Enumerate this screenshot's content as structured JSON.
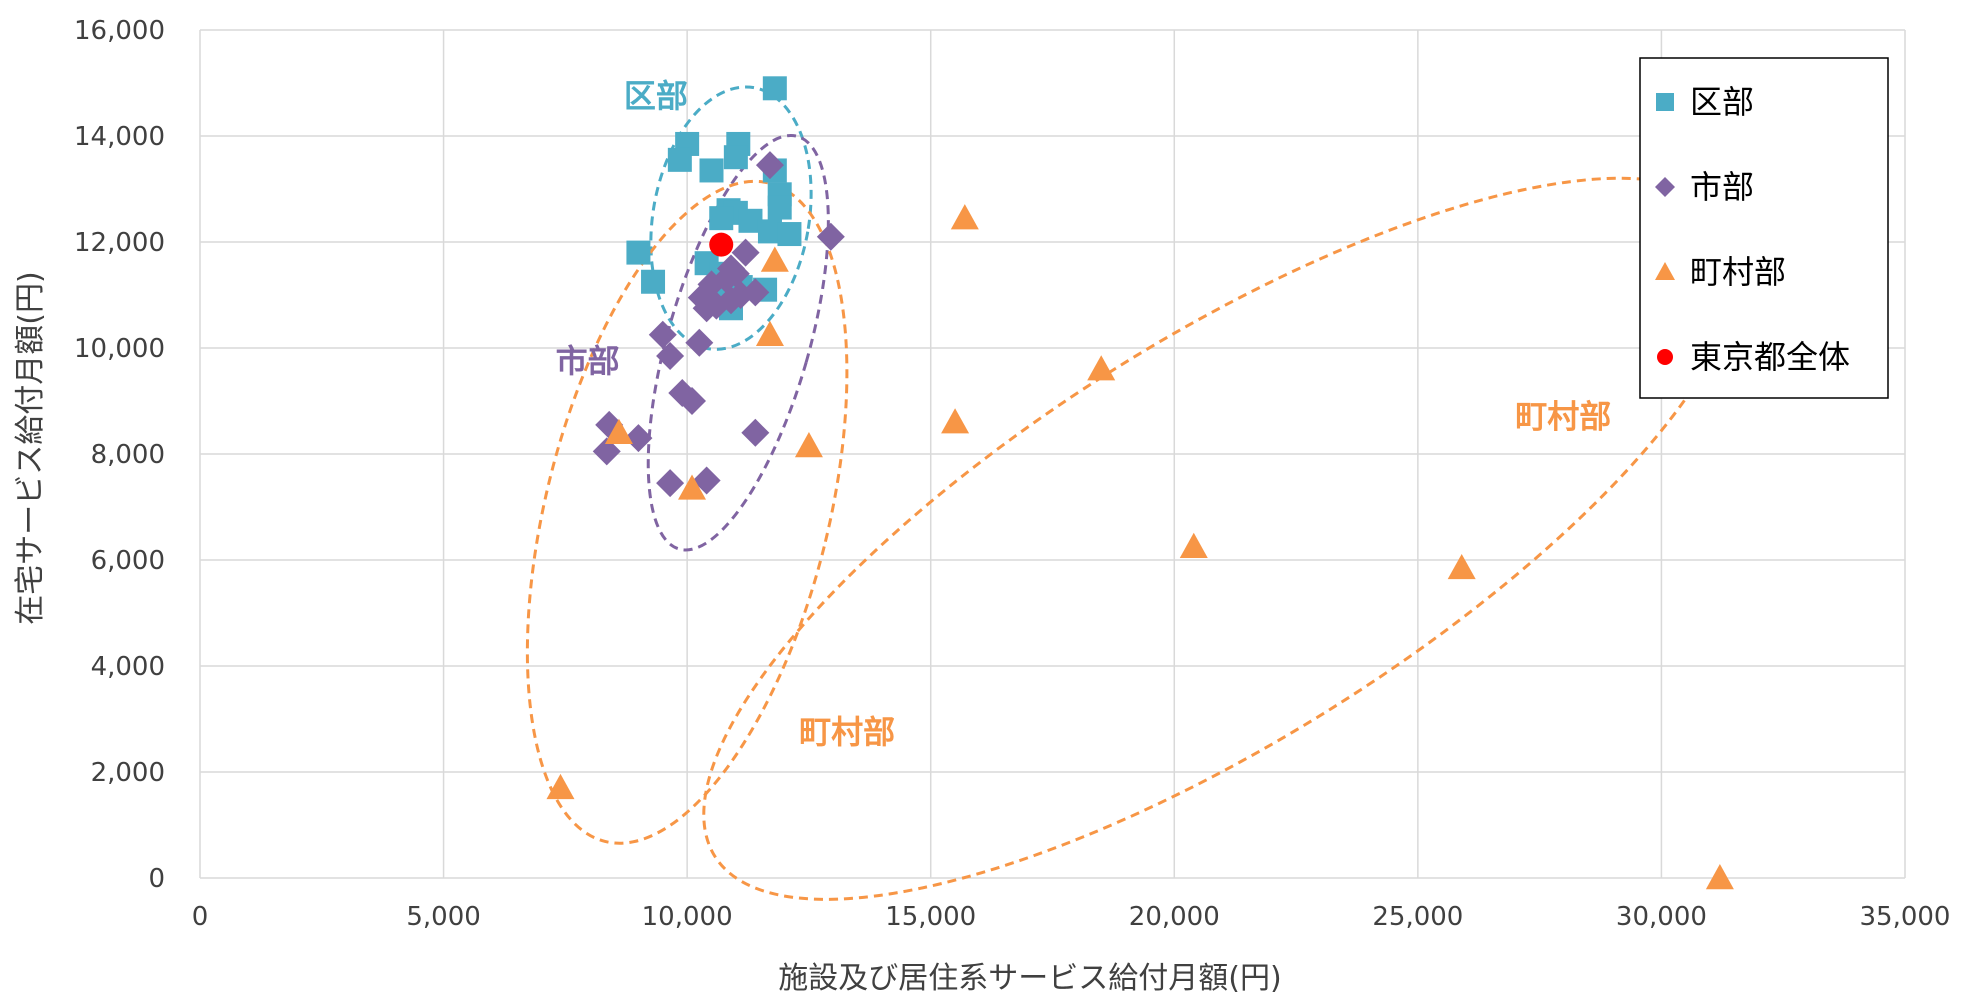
{
  "chart_data": {
    "type": "scatter",
    "xlabel": "施設及び居住系サービス給付月額(円)",
    "ylabel": "在宅サービス給付月額(円)",
    "xlim": [
      0,
      35000
    ],
    "ylim": [
      0,
      16000
    ],
    "xticks": [
      0,
      5000,
      10000,
      15000,
      20000,
      25000,
      30000,
      35000
    ],
    "yticks": [
      0,
      2000,
      4000,
      6000,
      8000,
      10000,
      12000,
      14000,
      16000
    ],
    "xtick_labels": [
      "0",
      "5,000",
      "10,000",
      "15,000",
      "20,000",
      "25,000",
      "30,000",
      "35,000"
    ],
    "ytick_labels": [
      "0",
      "2,000",
      "4,000",
      "6,000",
      "8,000",
      "10,000",
      "12,000",
      "14,000",
      "16,000"
    ],
    "grid": true,
    "legend_position": "top-right",
    "series": [
      {
        "name": "区部",
        "marker": "square",
        "color": "#4BACC6",
        "points": [
          [
            11800,
            14900
          ],
          [
            10000,
            13850
          ],
          [
            11050,
            13850
          ],
          [
            9850,
            13550
          ],
          [
            11000,
            13600
          ],
          [
            10500,
            13350
          ],
          [
            11800,
            13350
          ],
          [
            11900,
            12900
          ],
          [
            10850,
            12600
          ],
          [
            11000,
            12550
          ],
          [
            10700,
            12450
          ],
          [
            11900,
            12650
          ],
          [
            11300,
            12400
          ],
          [
            11700,
            12200
          ],
          [
            12100,
            12150
          ],
          [
            9000,
            11800
          ],
          [
            10400,
            11600
          ],
          [
            9300,
            11250
          ],
          [
            11100,
            11150
          ],
          [
            11600,
            11100
          ],
          [
            10600,
            10950
          ],
          [
            10900,
            10750
          ],
          [
            10700,
            11400
          ]
        ]
      },
      {
        "name": "市部",
        "marker": "diamond",
        "color": "#8064A2",
        "points": [
          [
            11700,
            13450
          ],
          [
            12950,
            12100
          ],
          [
            11200,
            11800
          ],
          [
            10900,
            11500
          ],
          [
            10800,
            11300
          ],
          [
            11000,
            11400
          ],
          [
            10500,
            11200
          ],
          [
            10300,
            10950
          ],
          [
            10600,
            10800
          ],
          [
            10400,
            10750
          ],
          [
            11100,
            11000
          ],
          [
            11400,
            11050
          ],
          [
            10900,
            10900
          ],
          [
            9500,
            10250
          ],
          [
            10250,
            10100
          ],
          [
            9650,
            9850
          ],
          [
            9900,
            9150
          ],
          [
            10100,
            9000
          ],
          [
            8400,
            8550
          ],
          [
            9000,
            8300
          ],
          [
            8350,
            8050
          ],
          [
            11400,
            8400
          ],
          [
            9650,
            7450
          ],
          [
            10400,
            7500
          ]
        ]
      },
      {
        "name": "町村部",
        "marker": "triangle",
        "color": "#F79646",
        "points": [
          [
            15700,
            12450
          ],
          [
            11800,
            11650
          ],
          [
            11700,
            10250
          ],
          [
            18500,
            9600
          ],
          [
            15500,
            8600
          ],
          [
            8600,
            8400
          ],
          [
            12500,
            8150
          ],
          [
            10100,
            7350
          ],
          [
            20400,
            6250
          ],
          [
            25900,
            5850
          ],
          [
            7400,
            1700
          ],
          [
            31200,
            0
          ]
        ]
      },
      {
        "name": "東京都全体",
        "marker": "circle",
        "color": "#FF0000",
        "points": [
          [
            10700,
            11950
          ]
        ]
      }
    ],
    "ellipses": [
      {
        "series": "区部",
        "color": "#4BACC6",
        "cx": 10900,
        "cy": 12450,
        "rx": 1600,
        "ry": 2500,
        "rot": 10
      },
      {
        "series": "市部",
        "color": "#8064A2",
        "cx": 11050,
        "cy": 10100,
        "rx": 1450,
        "ry": 4050,
        "rot": 16
      },
      {
        "series": "町村部",
        "color": "#F79646",
        "cx": 10000,
        "cy": 6900,
        "rx": 2900,
        "ry": 6400,
        "rot": 14
      },
      {
        "series": "町村部",
        "color": "#F79646",
        "cx": 21000,
        "cy": 6400,
        "rx": 12300,
        "ry": 3800,
        "rot": -32
      }
    ],
    "annotations": [
      {
        "text": "区部",
        "color": "#4BACC6",
        "x": 8700,
        "y": 14550
      },
      {
        "text": "市部",
        "color": "#8064A2",
        "x": 7300,
        "y": 9550
      },
      {
        "text": "町村部",
        "color": "#F79646",
        "x": 27000,
        "y": 8500
      },
      {
        "text": "町村部",
        "color": "#F79646",
        "x": 12300,
        "y": 2550
      }
    ]
  }
}
